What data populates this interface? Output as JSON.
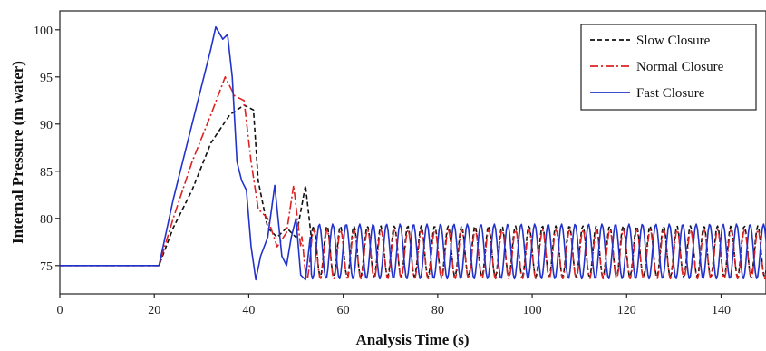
{
  "chart_data": {
    "type": "line",
    "title": "",
    "xlabel": "Analysis Time (s)",
    "ylabel": "Internal Pressure (m water)",
    "xlim": [
      0,
      150
    ],
    "ylim": [
      72,
      102
    ],
    "x_ticks": [
      0,
      20,
      40,
      60,
      80,
      100,
      120,
      140
    ],
    "y_ticks": [
      75,
      80,
      85,
      90,
      95,
      100
    ],
    "grid": false,
    "legend_position": "top-right",
    "series": [
      {
        "name": "Slow Closure",
        "color": "#111111",
        "style": "dashed",
        "key_points": [
          [
            0,
            75
          ],
          [
            21,
            75
          ],
          [
            24,
            79
          ],
          [
            28,
            83
          ],
          [
            32,
            88
          ],
          [
            36,
            91
          ],
          [
            39,
            92
          ],
          [
            41,
            91.5
          ],
          [
            42,
            84
          ],
          [
            44,
            79
          ],
          [
            46,
            78
          ],
          [
            48,
            79
          ],
          [
            50,
            78
          ],
          [
            52,
            83.5
          ],
          [
            53,
            79
          ]
        ],
        "oscillation": {
          "start": 53,
          "end": 150,
          "center": 76.5,
          "amplitude": 2.7,
          "period": 2.85,
          "phase": 0.0
        }
      },
      {
        "name": "Normal Closure",
        "color": "#dd2222",
        "style": "dashdot",
        "key_points": [
          [
            0,
            75
          ],
          [
            21,
            75
          ],
          [
            24,
            80
          ],
          [
            28,
            86
          ],
          [
            32,
            91
          ],
          [
            35,
            95
          ],
          [
            37,
            93
          ],
          [
            39,
            92.5
          ],
          [
            40.5,
            86
          ],
          [
            42,
            81
          ],
          [
            44,
            80
          ],
          [
            46,
            77
          ],
          [
            48,
            78.5
          ],
          [
            49.5,
            83.5
          ],
          [
            51,
            77
          ]
        ],
        "oscillation": {
          "start": 51,
          "end": 150,
          "center": 76.2,
          "amplitude": 2.6,
          "period": 2.85,
          "phase": 1.8
        }
      },
      {
        "name": "Fast Closure",
        "color": "#2233cc",
        "style": "solid",
        "key_points": [
          [
            0,
            75
          ],
          [
            21,
            75
          ],
          [
            24,
            82
          ],
          [
            27,
            88
          ],
          [
            30,
            94
          ],
          [
            32,
            98
          ],
          [
            33,
            100.3
          ],
          [
            34.5,
            99
          ],
          [
            35.5,
            99.5
          ],
          [
            36.5,
            95
          ],
          [
            37.5,
            86
          ],
          [
            38.5,
            84
          ],
          [
            39.5,
            83
          ],
          [
            40.5,
            77
          ],
          [
            41.5,
            73.5
          ],
          [
            42.5,
            76
          ],
          [
            44,
            78
          ],
          [
            45.5,
            83.5
          ],
          [
            47,
            76
          ],
          [
            48,
            75
          ],
          [
            49,
            78
          ],
          [
            50,
            80
          ],
          [
            51,
            74
          ],
          [
            52,
            73.5
          ],
          [
            53,
            78
          ]
        ],
        "oscillation": {
          "start": 53,
          "end": 150,
          "center": 76.5,
          "amplitude": 2.9,
          "period": 2.85,
          "phase": 3.6
        }
      }
    ]
  }
}
